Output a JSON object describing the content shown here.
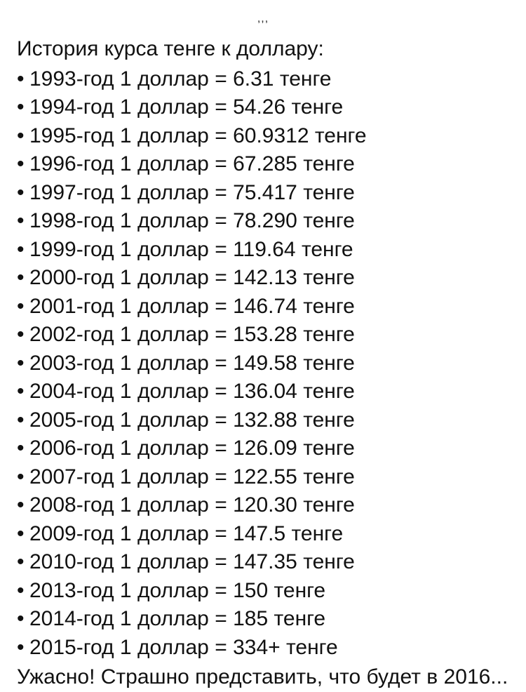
{
  "top_marks": ",,,",
  "title": "История курса тенге к доллару:",
  "unit_from": "доллар",
  "unit_to": "тенге",
  "year_suffix": "-год",
  "equals": "=",
  "one": "1",
  "rates": [
    {
      "year": "1993",
      "value": "6.31"
    },
    {
      "year": "1994",
      "value": "54.26"
    },
    {
      "year": "1995",
      "value": "60.9312"
    },
    {
      "year": "1996",
      "value": "67.285"
    },
    {
      "year": "1997",
      "value": "75.417"
    },
    {
      "year": "1998",
      "value": "78.290"
    },
    {
      "year": "1999",
      "value": "119.64"
    },
    {
      "year": "2000",
      "value": "142.13"
    },
    {
      "year": "2001",
      "value": "146.74"
    },
    {
      "year": "2002",
      "value": "153.28"
    },
    {
      "year": "2003",
      "value": "149.58"
    },
    {
      "year": "2004",
      "value": "136.04"
    },
    {
      "year": "2005",
      "value": "132.88"
    },
    {
      "year": "2006",
      "value": "126.09"
    },
    {
      "year": "2007",
      "value": "122.55"
    },
    {
      "year": "2008",
      "value": "120.30"
    },
    {
      "year": "2009",
      "value": "147.5"
    },
    {
      "year": "2010",
      "value": "147.35"
    },
    {
      "year": "2013",
      "value": "150"
    },
    {
      "year": "2014",
      "value": "185"
    },
    {
      "year": "2015",
      "value": "334+"
    }
  ],
  "footer": "Ужасно! Страшно представить, что будет в 2016...",
  "style": {
    "background_color": "#ffffff",
    "text_color": "#111111",
    "font_size_pt": 22,
    "bullet_char": "•"
  }
}
